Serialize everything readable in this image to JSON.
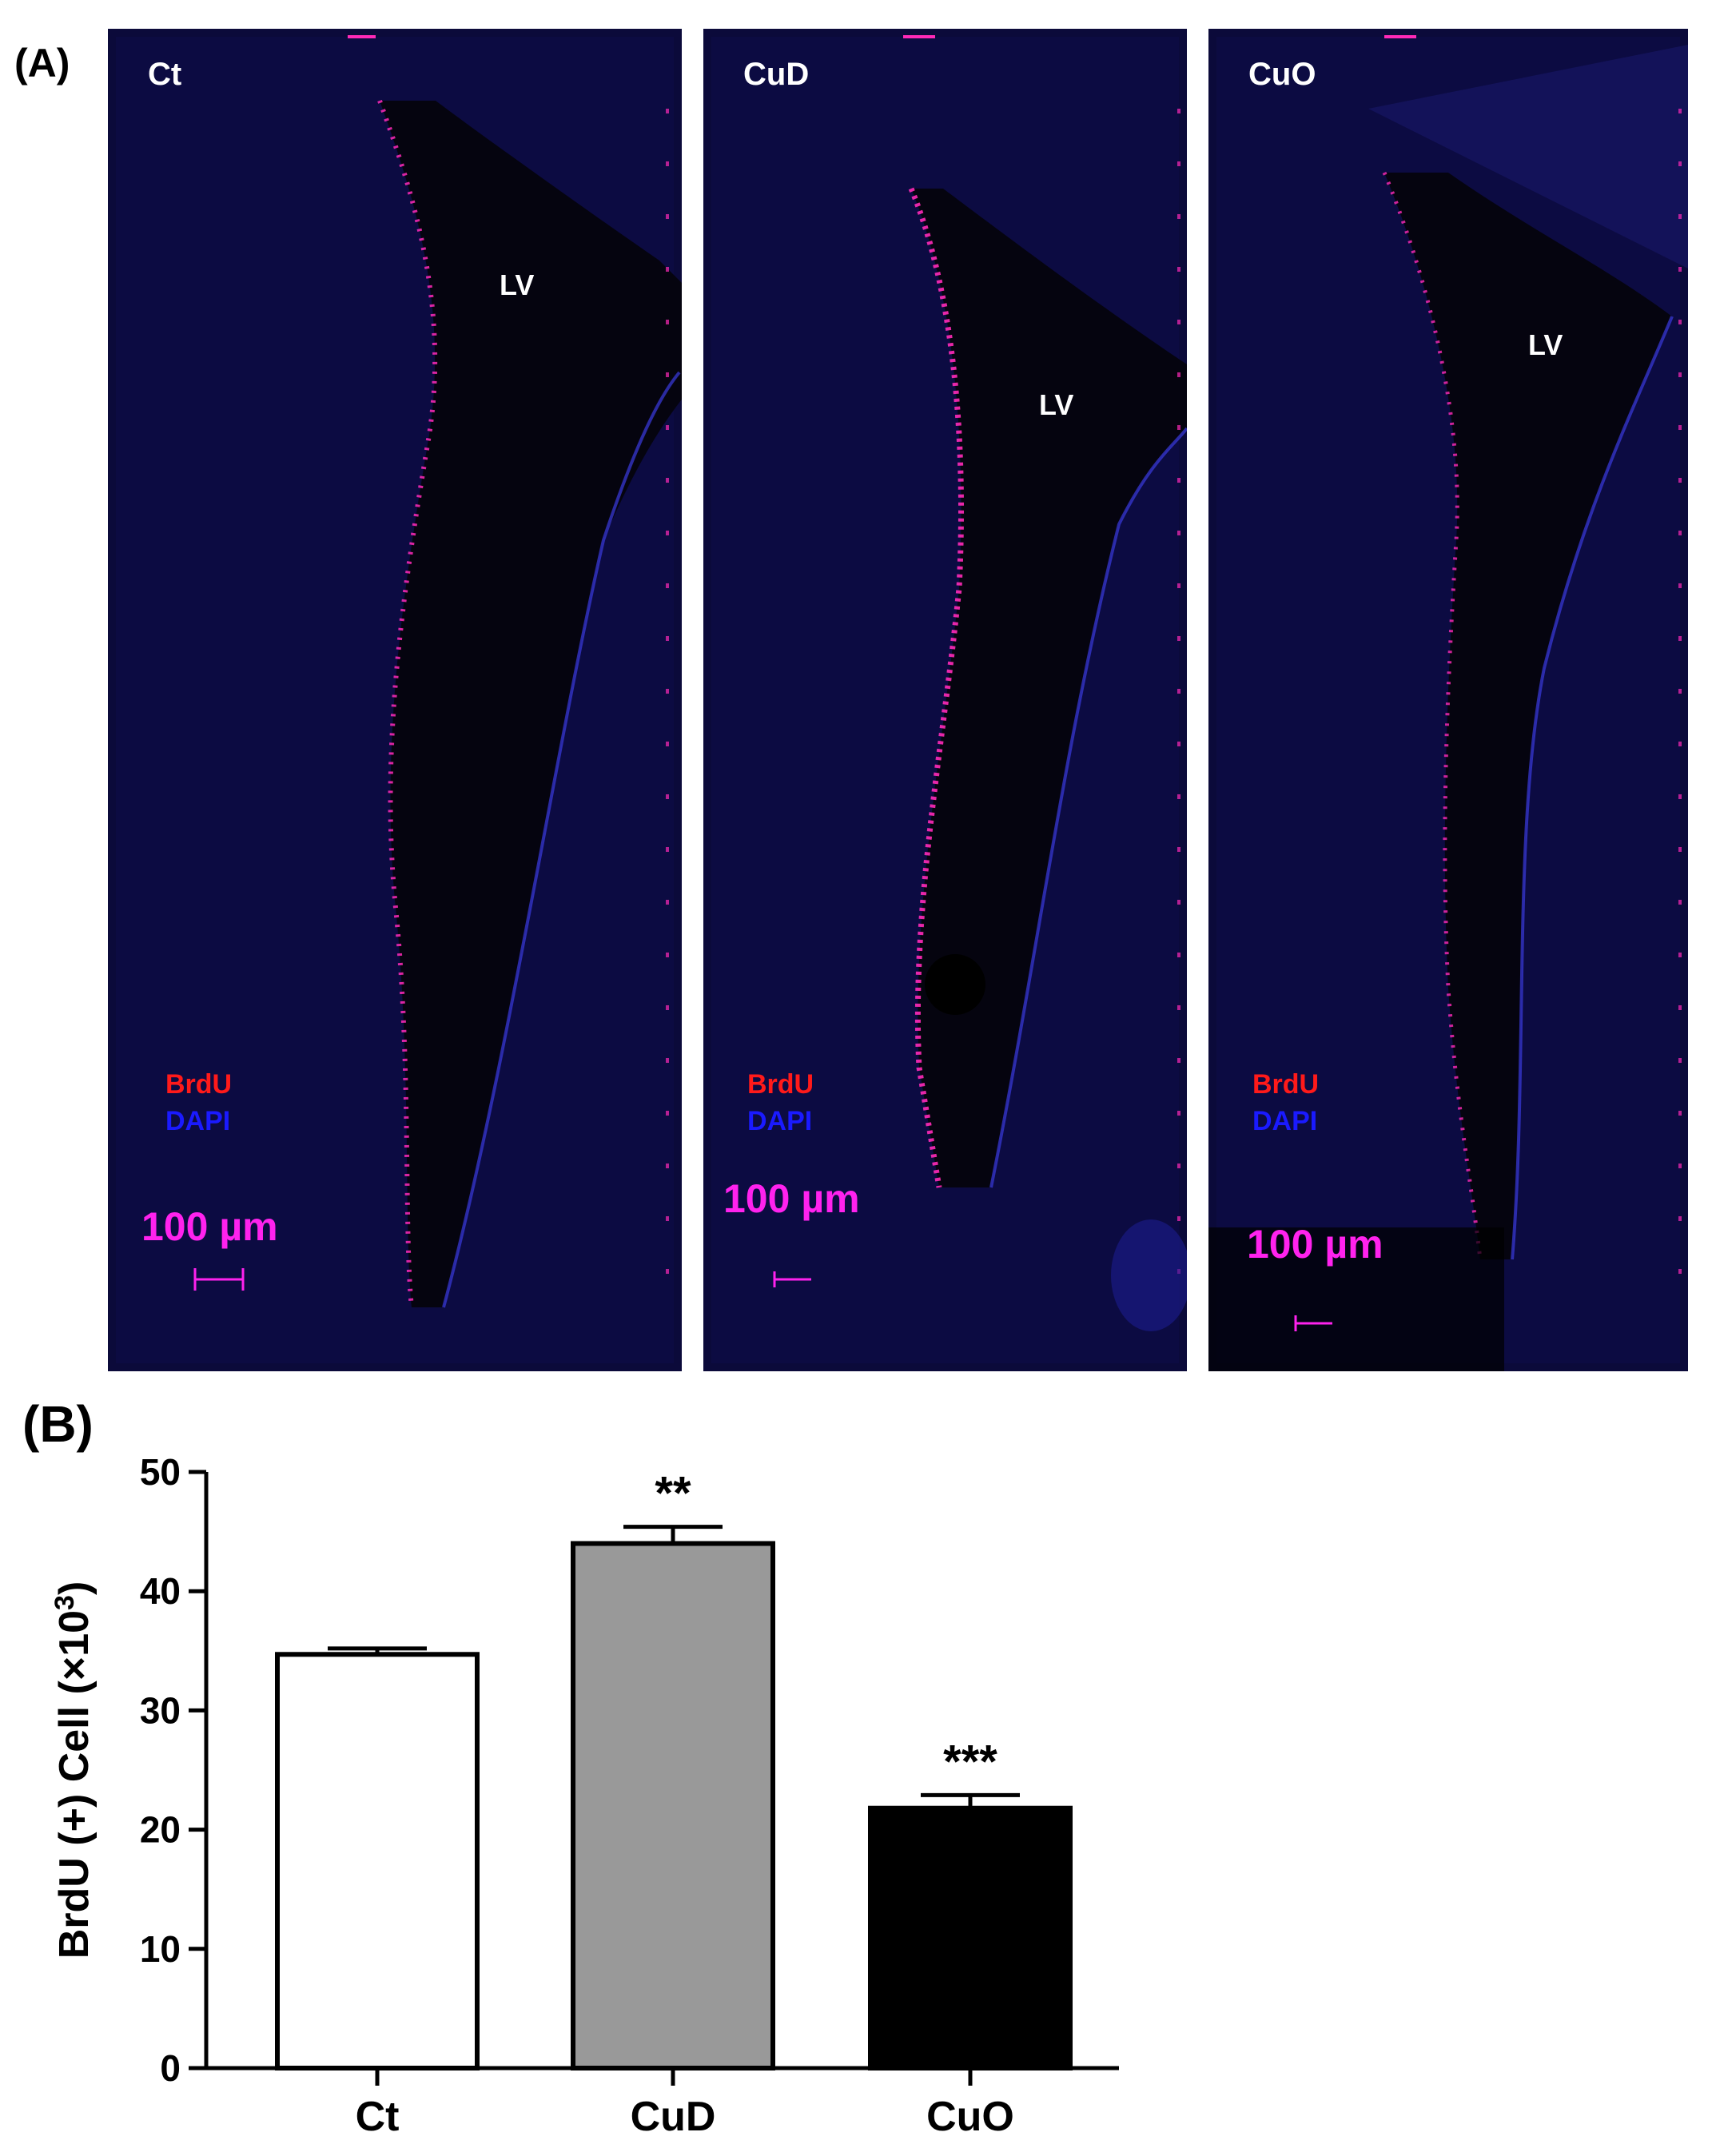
{
  "panel_a": {
    "label": "(A)",
    "panels": [
      {
        "condition": "Ct",
        "lv": "LV",
        "legend_brdu": "BrdU",
        "legend_dapi": "DAPI",
        "scale": "100 µm"
      },
      {
        "condition": "CuD",
        "lv": "LV",
        "legend_brdu": "BrdU",
        "legend_dapi": "DAPI",
        "scale": "100 µm"
      },
      {
        "condition": "CuO",
        "lv": "LV",
        "legend_brdu": "BrdU",
        "legend_dapi": "DAPI",
        "scale": "100 µm"
      }
    ],
    "colors": {
      "background": "#04030f",
      "dapi": "#1a1aff",
      "brdu": "#ff1a1a",
      "scale": "#ff22ee"
    }
  },
  "panel_b": {
    "label": "(B)"
  },
  "chart_data": {
    "type": "bar",
    "categories": [
      "Ct",
      "CuD",
      "CuO"
    ],
    "values": [
      34.7,
      44.0,
      21.8
    ],
    "errors": [
      0.5,
      1.4,
      1.1
    ],
    "significance": [
      "",
      "**",
      "***"
    ],
    "bar_colors": [
      "#ffffff",
      "#999999",
      "#000000"
    ],
    "title": "",
    "xlabel": "",
    "ylabel": "BrdU (+) Cell (×10",
    "ylabel_superscript": "3",
    "ylabel_close": ")",
    "ylim": [
      0,
      50
    ],
    "yticks": [
      "0",
      "10",
      "20",
      "30",
      "40",
      "50"
    ],
    "grid": false,
    "legend": "none"
  }
}
